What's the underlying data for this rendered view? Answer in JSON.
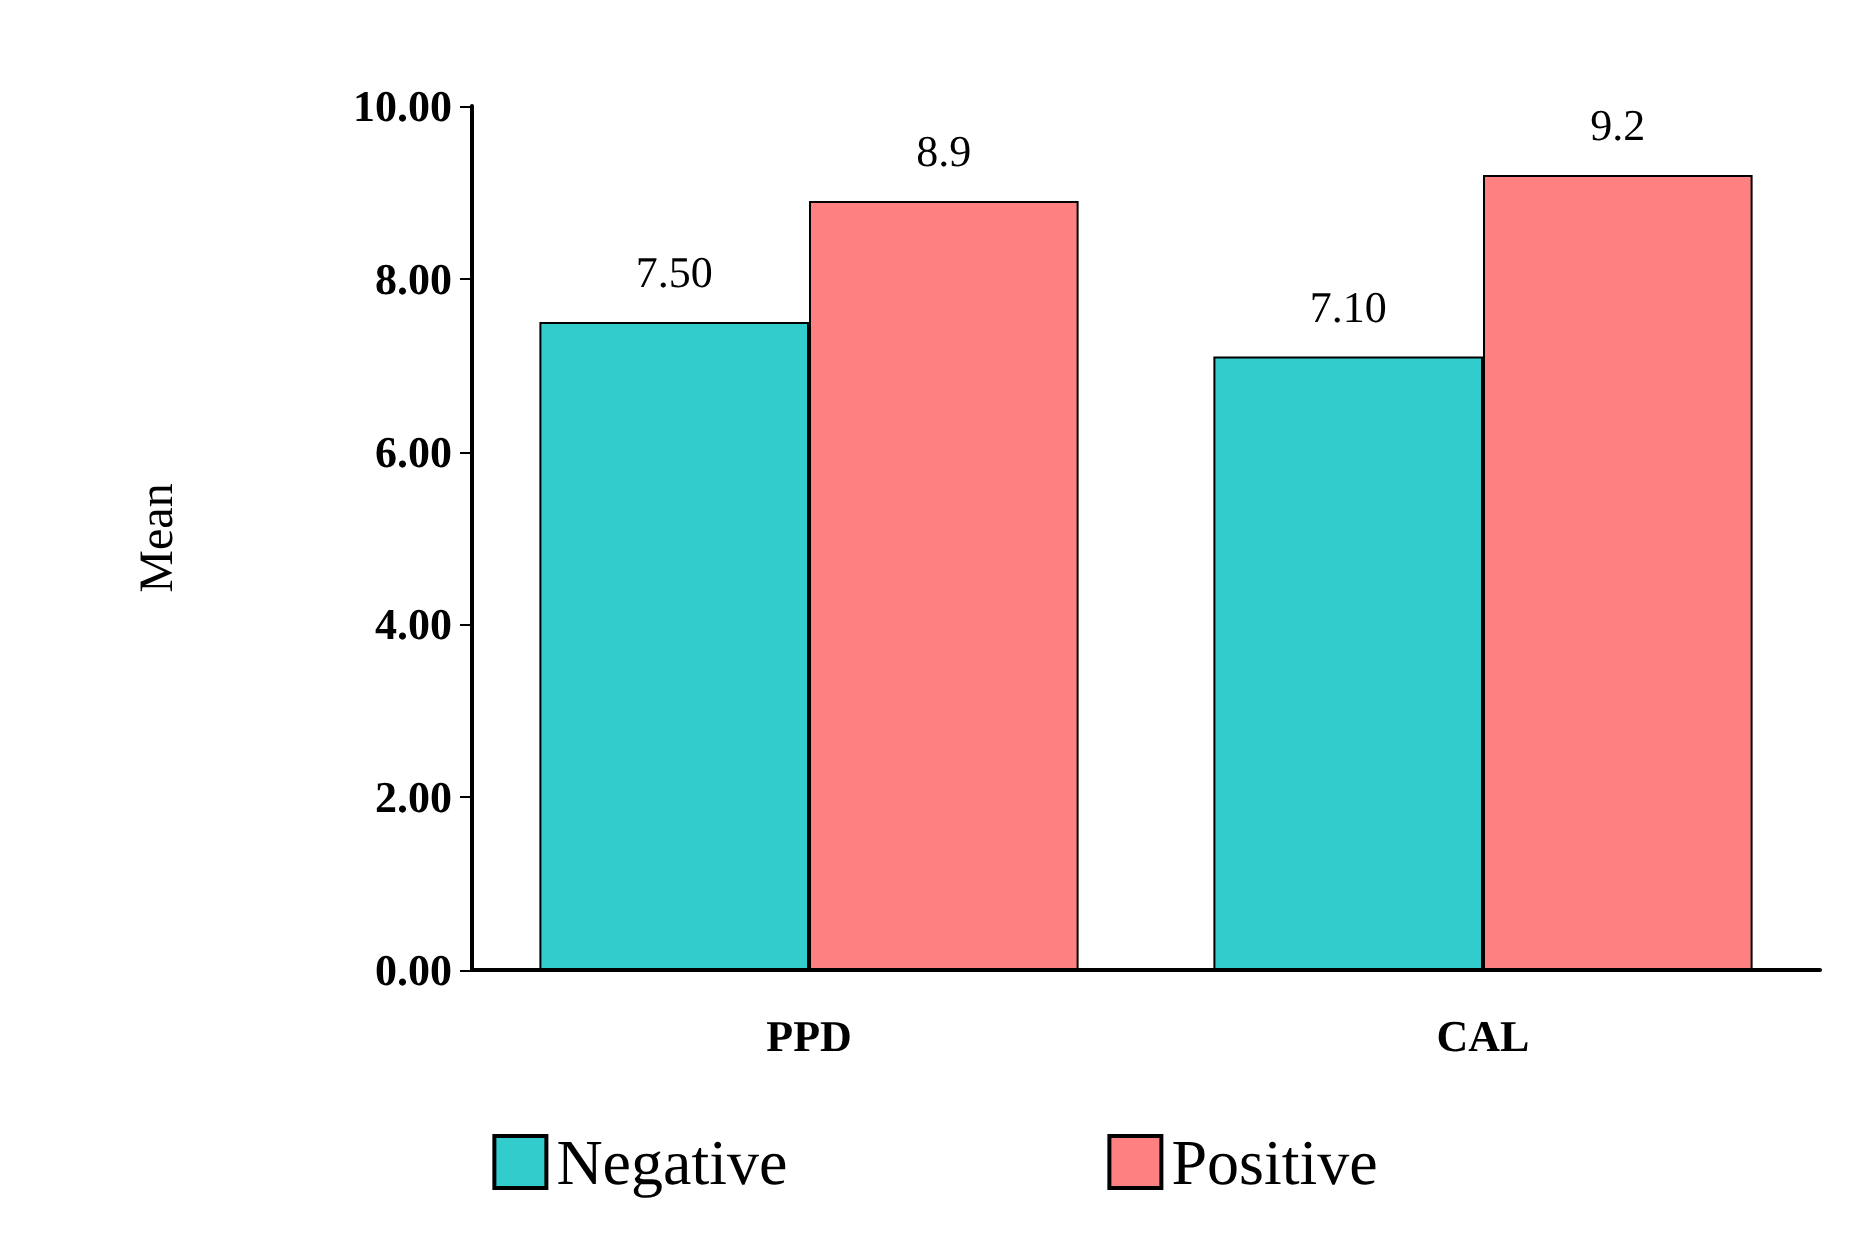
{
  "chart_data": {
    "type": "bar",
    "ylabel": "Mean",
    "categories": [
      "PPD",
      "CAL"
    ],
    "series": [
      {
        "name": "Negative",
        "color": "#33cccc",
        "values": [
          7.5,
          7.1
        ],
        "value_labels": [
          "7.50",
          "7.10"
        ]
      },
      {
        "name": "Positive",
        "color": "#ff8080",
        "values": [
          8.9,
          9.2
        ],
        "value_labels": [
          "8.9",
          "9.2"
        ]
      }
    ],
    "ylim": [
      0,
      10
    ],
    "yticks": [
      {
        "value": 0,
        "label": "0.00"
      },
      {
        "value": 2,
        "label": "2.00"
      },
      {
        "value": 4,
        "label": "4.00"
      },
      {
        "value": 6,
        "label": "6.00"
      },
      {
        "value": 8,
        "label": "8.00"
      },
      {
        "value": 10,
        "label": "10.00"
      }
    ],
    "grid": false,
    "legend": "bottom"
  }
}
